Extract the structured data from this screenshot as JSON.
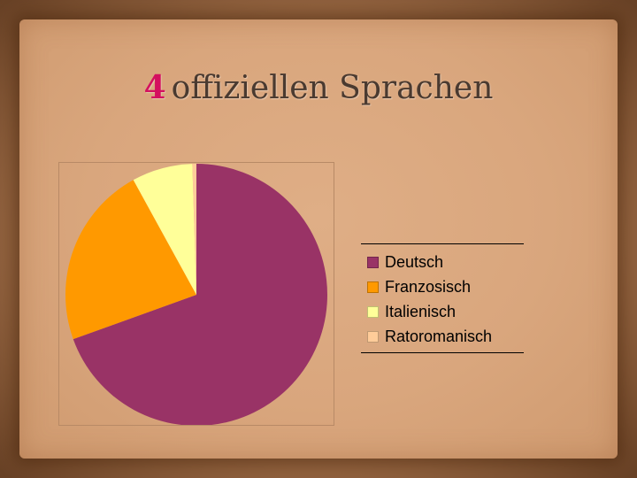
{
  "slide": {
    "title_number": "4",
    "title_text": "offizie llen Sprachen"
  },
  "chart_data": {
    "type": "pie",
    "title": "4 offiziellen Sprachen",
    "categories": [
      "Deutsch",
      "Franzosisch",
      "Italienisch",
      "Ratoromanisch"
    ],
    "values": [
      69.5,
      22.5,
      7.5,
      0.5
    ],
    "colors": [
      "#993366",
      "#ff9900",
      "#ffff99",
      "#ffcc99"
    ],
    "legend_position": "right"
  }
}
